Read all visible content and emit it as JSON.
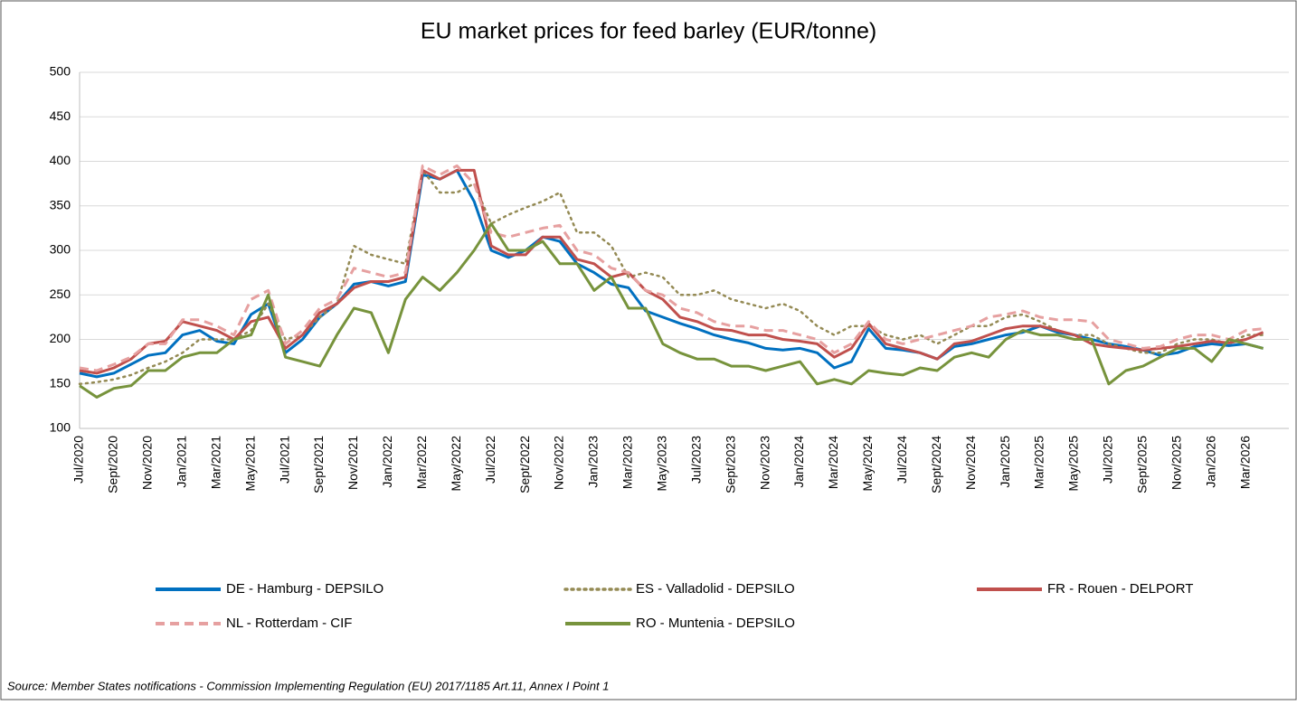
{
  "chart_data": {
    "type": "line",
    "title": "EU market prices for feed barley (EUR/tonne)",
    "source": "Source: Member States notifications - Commission Implementing Regulation (EU) 2017/1185 Art.11, Annex I Point 1",
    "categories": [
      "Jul/2020",
      null,
      "Sept/2020",
      null,
      "Nov/2020",
      null,
      "Jan/2021",
      null,
      "Mar/2021",
      null,
      "May/2021",
      null,
      "Jul/2021",
      null,
      "Sept/2021",
      null,
      "Nov/2021",
      null,
      "Jan/2022",
      null,
      "Mar/2022",
      null,
      "May/2022",
      null,
      "Jul/2022",
      null,
      "Sept/2022",
      null,
      "Nov/2022",
      null,
      "Jan/2023",
      null,
      "Mar/2023",
      null,
      "May/2023",
      null,
      "Jul/2023",
      null,
      "Sept/2023",
      null,
      "Nov/2023",
      null,
      "Jan/2024",
      null,
      "Mar/2024",
      null,
      "May/2024",
      null,
      "Jul/2024",
      null,
      "Sept/2024",
      null,
      "Nov/2024",
      null,
      "Jan/2025",
      null,
      "Mar/2025",
      null,
      "May/2025",
      null,
      "Jul/2025",
      null,
      "Sept/2025",
      null,
      "Nov/2025",
      null,
      "Jan/2026",
      null,
      "Mar/2026",
      null
    ],
    "ylim": [
      100,
      500
    ],
    "yticks": [
      100,
      150,
      200,
      250,
      300,
      350,
      400,
      450,
      500
    ],
    "grid": true,
    "series": [
      {
        "name": "DE - Hamburg - DEPSILO",
        "color": "#0070c0",
        "line_style": "solid",
        "values": [
          162,
          158,
          162,
          172,
          182,
          185,
          205,
          210,
          198,
          195,
          228,
          240,
          185,
          200,
          225,
          240,
          262,
          265,
          260,
          265,
          385,
          380,
          390,
          355,
          300,
          292,
          300,
          315,
          310,
          285,
          275,
          262,
          258,
          232,
          225,
          218,
          212,
          205,
          200,
          196,
          190,
          188,
          190,
          185,
          168,
          175,
          212,
          190,
          188,
          185,
          178,
          192,
          195,
          200,
          205,
          208,
          215,
          208,
          205,
          200,
          195,
          192,
          188,
          182,
          185,
          192,
          195,
          193,
          195,
          190
        ]
      },
      {
        "name": "ES - Valladolid - DEPSILO",
        "color": "#948a54",
        "line_style": "dotted",
        "values": [
          150,
          152,
          155,
          160,
          168,
          175,
          185,
          200,
          200,
          200,
          210,
          240,
          200,
          205,
          225,
          240,
          305,
          295,
          290,
          285,
          390,
          365,
          365,
          375,
          330,
          340,
          348,
          355,
          365,
          320,
          320,
          305,
          270,
          275,
          270,
          250,
          250,
          255,
          245,
          240,
          235,
          240,
          232,
          215,
          205,
          215,
          215,
          205,
          200,
          205,
          195,
          205,
          215,
          215,
          225,
          228,
          220,
          210,
          205,
          205,
          195,
          190,
          185,
          185,
          195,
          200,
          200,
          195,
          205,
          205
        ]
      },
      {
        "name": "FR - Rouen - DELPORT",
        "color": "#c0504d",
        "line_style": "solid",
        "values": [
          165,
          162,
          168,
          178,
          195,
          198,
          220,
          215,
          210,
          200,
          220,
          225,
          190,
          205,
          230,
          240,
          258,
          265,
          265,
          270,
          390,
          380,
          390,
          390,
          305,
          295,
          295,
          315,
          315,
          290,
          285,
          270,
          275,
          255,
          245,
          225,
          220,
          212,
          210,
          205,
          205,
          200,
          198,
          195,
          180,
          190,
          218,
          195,
          190,
          185,
          178,
          195,
          198,
          205,
          212,
          215,
          215,
          210,
          205,
          195,
          192,
          190,
          188,
          190,
          192,
          195,
          198,
          196,
          200,
          208
        ]
      },
      {
        "name": "NL - Rotterdam - CIF",
        "color": "#e6a0a0",
        "line_style": "dashed",
        "values": [
          168,
          165,
          172,
          180,
          195,
          195,
          222,
          222,
          215,
          205,
          245,
          255,
          195,
          210,
          235,
          245,
          280,
          275,
          270,
          275,
          395,
          385,
          395,
          375,
          320,
          315,
          320,
          325,
          328,
          300,
          295,
          280,
          275,
          255,
          250,
          235,
          230,
          220,
          215,
          215,
          210,
          210,
          205,
          200,
          185,
          195,
          220,
          200,
          195,
          200,
          205,
          210,
          215,
          225,
          228,
          232,
          225,
          222,
          222,
          220,
          200,
          195,
          190,
          192,
          200,
          205,
          205,
          200,
          210,
          212
        ]
      },
      {
        "name": "RO - Muntenia - DEPSILO",
        "color": "#77933c",
        "line_style": "solid",
        "values": [
          148,
          135,
          145,
          148,
          165,
          165,
          180,
          185,
          185,
          200,
          205,
          250,
          180,
          175,
          170,
          205,
          235,
          230,
          185,
          245,
          270,
          255,
          275,
          300,
          330,
          300,
          300,
          310,
          285,
          285,
          255,
          270,
          235,
          235,
          195,
          185,
          178,
          178,
          170,
          170,
          165,
          170,
          175,
          150,
          155,
          150,
          165,
          162,
          160,
          168,
          165,
          180,
          185,
          180,
          200,
          210,
          205,
          205,
          200,
          200,
          150,
          165,
          170,
          180,
          190,
          190,
          175,
          200,
          195,
          190
        ]
      }
    ]
  }
}
